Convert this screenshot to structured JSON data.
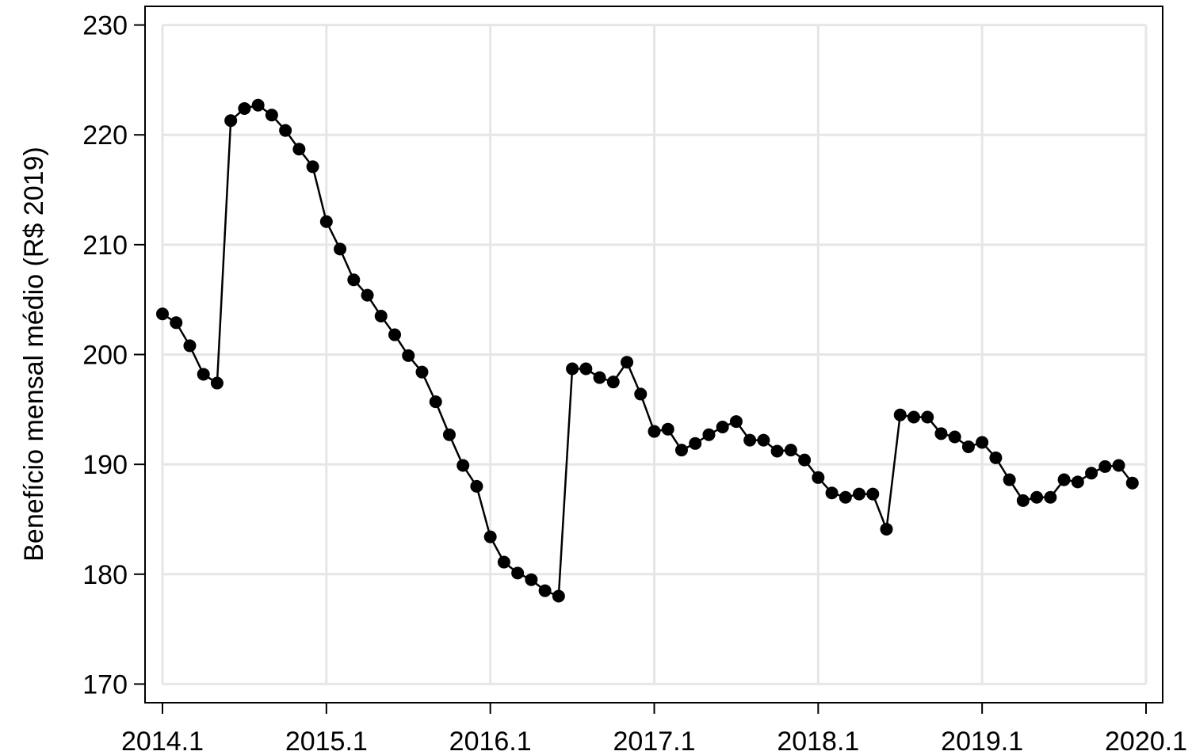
{
  "chart_data": {
    "type": "line",
    "y_label": "Benefício mensal médio (R$ 2019)",
    "x": [
      "2014.1",
      "2014.2",
      "2014.3",
      "2014.4",
      "2014.5",
      "2014.6",
      "2014.7",
      "2014.8",
      "2014.9",
      "2014.10",
      "2014.11",
      "2014.12",
      "2015.1",
      "2015.2",
      "2015.3",
      "2015.4",
      "2015.5",
      "2015.6",
      "2015.7",
      "2015.8",
      "2015.9",
      "2015.10",
      "2015.11",
      "2015.12",
      "2016.1",
      "2016.2",
      "2016.3",
      "2016.4",
      "2016.5",
      "2016.6",
      "2016.7",
      "2016.8",
      "2016.9",
      "2016.10",
      "2016.11",
      "2016.12",
      "2017.1",
      "2017.2",
      "2017.3",
      "2017.4",
      "2017.5",
      "2017.6",
      "2017.7",
      "2017.8",
      "2017.9",
      "2017.10",
      "2017.11",
      "2017.12",
      "2018.1",
      "2018.2",
      "2018.3",
      "2018.4",
      "2018.5",
      "2018.6",
      "2018.7",
      "2018.8",
      "2018.9",
      "2018.10",
      "2018.11",
      "2018.12",
      "2019.1",
      "2019.2",
      "2019.3",
      "2019.4",
      "2019.5",
      "2019.6",
      "2019.7",
      "2019.8",
      "2019.9",
      "2019.10",
      "2019.11",
      "2019.12"
    ],
    "values": [
      203.7,
      202.9,
      200.8,
      198.2,
      197.4,
      221.3,
      222.4,
      222.7,
      221.8,
      220.4,
      218.7,
      217.1,
      212.1,
      209.6,
      206.8,
      205.4,
      203.5,
      201.8,
      199.9,
      198.4,
      195.7,
      192.7,
      189.9,
      188.0,
      183.4,
      181.1,
      180.1,
      179.5,
      178.5,
      178.0,
      198.7,
      198.7,
      197.9,
      197.5,
      199.3,
      196.4,
      193.0,
      193.2,
      191.3,
      191.9,
      192.7,
      193.4,
      193.9,
      192.2,
      192.2,
      191.2,
      191.3,
      190.4,
      188.8,
      187.4,
      187.0,
      187.3,
      187.3,
      184.1,
      194.5,
      194.3,
      194.3,
      192.8,
      192.5,
      191.6,
      192.0,
      190.6,
      188.6,
      186.7,
      187.0,
      187.0,
      188.6,
      188.4,
      189.2,
      189.8,
      189.9,
      188.3
    ],
    "color": "#000000",
    "xticks": [
      "2014.1",
      "2015.1",
      "2016.1",
      "2017.1",
      "2018.1",
      "2019.1",
      "2020.1"
    ],
    "ylim": [
      168.3,
      231.7
    ],
    "yticks": [
      170,
      180,
      190,
      200,
      210,
      220,
      230
    ],
    "grid": true
  }
}
